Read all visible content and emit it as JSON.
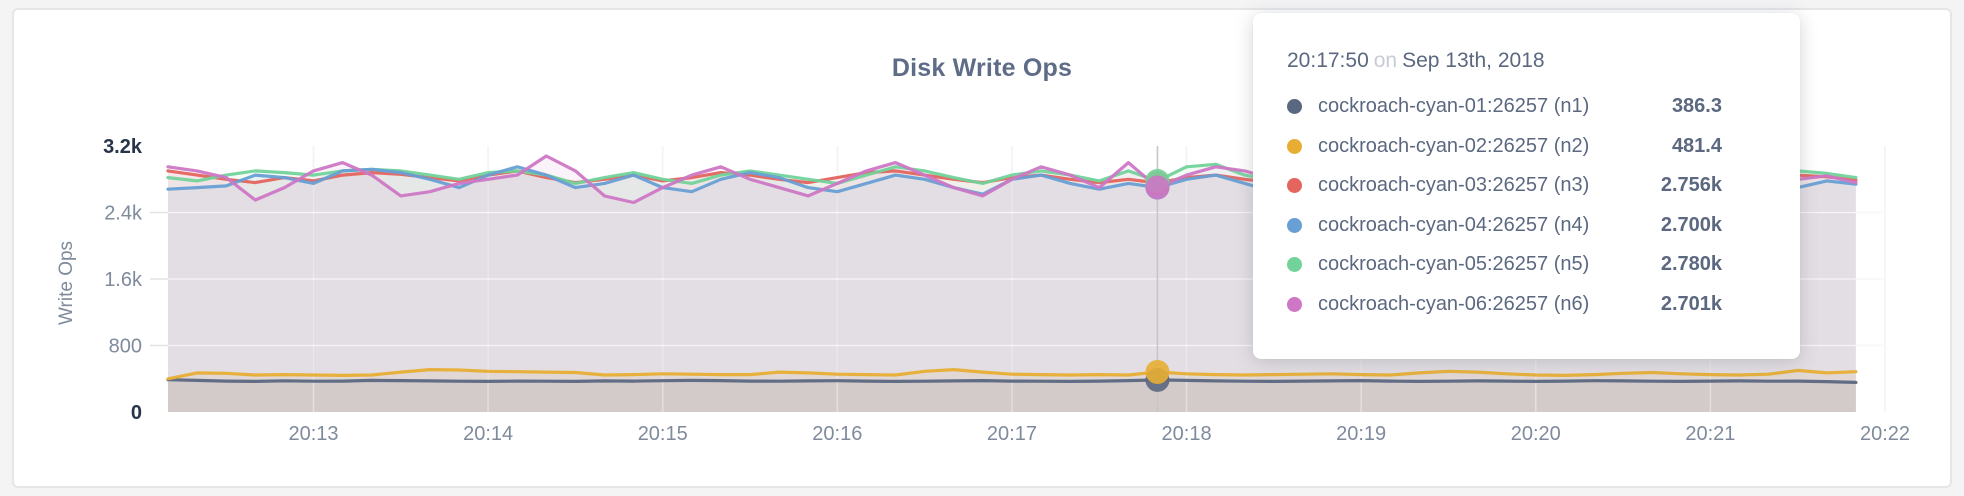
{
  "page": {
    "background": "#f4f4f5"
  },
  "card": {
    "background": "#ffffff",
    "border_color": "#e5e6e8"
  },
  "chart_data": {
    "type": "line",
    "title": "Disk Write Ops",
    "ylabel": "Write Ops",
    "xlabel": "",
    "ylim": [
      0,
      3200
    ],
    "grid": "on",
    "legend_position": "tooltip-only",
    "x_axis": {
      "start_time": "20:12:10",
      "end_time": "20:21:50",
      "step_sec": 10,
      "date": "Sep 13th, 2018"
    },
    "x_ticks": [
      {
        "label": "20:13",
        "sec": 50
      },
      {
        "label": "20:14",
        "sec": 110
      },
      {
        "label": "20:15",
        "sec": 170
      },
      {
        "label": "20:16",
        "sec": 230
      },
      {
        "label": "20:17",
        "sec": 290
      },
      {
        "label": "20:18",
        "sec": 350
      },
      {
        "label": "20:19",
        "sec": 410
      },
      {
        "label": "20:20",
        "sec": 470
      },
      {
        "label": "20:21",
        "sec": 530
      },
      {
        "label": "20:22",
        "sec": 590
      }
    ],
    "y_ticks": [
      {
        "label": "0",
        "value": 0,
        "emphasis": true
      },
      {
        "label": "800",
        "value": 800,
        "emphasis": false
      },
      {
        "label": "1.6k",
        "value": 1600,
        "emphasis": false
      },
      {
        "label": "2.4k",
        "value": 2400,
        "emphasis": false
      },
      {
        "label": "3.2k",
        "value": 3200,
        "emphasis": true
      }
    ],
    "x_offsets_sec": [
      0,
      10,
      20,
      30,
      40,
      50,
      60,
      70,
      80,
      90,
      100,
      110,
      120,
      130,
      140,
      150,
      160,
      170,
      180,
      190,
      200,
      210,
      220,
      230,
      240,
      250,
      260,
      270,
      280,
      290,
      300,
      310,
      320,
      330,
      340,
      350,
      360,
      370,
      380,
      390,
      400,
      410,
      420,
      430,
      440,
      450,
      460,
      470,
      480,
      490,
      500,
      510,
      520,
      530,
      540,
      550,
      560,
      570,
      580
    ],
    "series": [
      {
        "name": "cockroach-cyan-01:26257 (n1)",
        "color": "#5a6780",
        "fill_opacity": 0.13,
        "values": [
          388,
          380,
          372,
          368,
          375,
          370,
          372,
          380,
          378,
          374,
          370,
          368,
          372,
          370,
          368,
          374,
          372,
          376,
          380,
          378,
          372,
          370,
          374,
          376,
          372,
          368,
          370,
          374,
          378,
          372,
          370,
          368,
          372,
          378,
          386,
          380,
          374,
          370,
          368,
          372,
          374,
          378,
          372,
          368,
          370,
          374,
          372,
          368,
          372,
          376,
          374,
          370,
          368,
          372,
          374,
          370,
          372,
          366,
          356
        ]
      },
      {
        "name": "cockroach-cyan-02:26257 (n2)",
        "color": "#e7ae33",
        "fill_opacity": 0.1,
        "values": [
          400,
          470,
          465,
          445,
          450,
          445,
          440,
          445,
          480,
          510,
          505,
          490,
          485,
          480,
          475,
          445,
          450,
          460,
          455,
          450,
          450,
          480,
          470,
          455,
          450,
          445,
          490,
          510,
          480,
          455,
          450,
          445,
          450,
          445,
          481,
          460,
          450,
          445,
          450,
          455,
          460,
          450,
          445,
          470,
          490,
          480,
          460,
          445,
          440,
          450,
          465,
          475,
          460,
          450,
          445,
          455,
          500,
          470,
          485
        ]
      },
      {
        "name": "cockroach-cyan-03:26257 (n3)",
        "color": "#e4645e",
        "fill_opacity": 0.085,
        "values": [
          2900,
          2850,
          2800,
          2760,
          2820,
          2780,
          2850,
          2880,
          2860,
          2820,
          2780,
          2850,
          2900,
          2820,
          2760,
          2800,
          2850,
          2780,
          2820,
          2880,
          2850,
          2800,
          2760,
          2820,
          2880,
          2900,
          2850,
          2800,
          2760,
          2820,
          2850,
          2800,
          2760,
          2800,
          2756,
          2820,
          2850,
          2800,
          2760,
          2850,
          2900,
          2820,
          2780,
          2800,
          2850,
          2820,
          2780,
          2820,
          2860,
          2820,
          2780,
          2800,
          2850,
          2820,
          2780,
          2820,
          2850,
          2830,
          2790
        ]
      },
      {
        "name": "cockroach-cyan-04:26257 (n4)",
        "color": "#689fd4",
        "fill_opacity": 0.085,
        "values": [
          2680,
          2700,
          2720,
          2850,
          2820,
          2750,
          2900,
          2920,
          2880,
          2800,
          2700,
          2850,
          2950,
          2850,
          2700,
          2750,
          2850,
          2700,
          2650,
          2800,
          2880,
          2820,
          2700,
          2650,
          2750,
          2850,
          2800,
          2700,
          2620,
          2800,
          2850,
          2750,
          2680,
          2750,
          2700,
          2800,
          2850,
          2750,
          2650,
          2700,
          2800,
          2850,
          2700,
          2620,
          2700,
          2800,
          2750,
          2700,
          2750,
          2820,
          2750,
          2700,
          2650,
          2750,
          2800,
          2750,
          2700,
          2780,
          2740
        ]
      },
      {
        "name": "cockroach-cyan-05:26257 (n5)",
        "color": "#72d39a",
        "fill_opacity": 0.085,
        "values": [
          2820,
          2780,
          2850,
          2900,
          2880,
          2850,
          2900,
          2920,
          2900,
          2850,
          2800,
          2880,
          2900,
          2850,
          2750,
          2820,
          2880,
          2800,
          2750,
          2850,
          2900,
          2850,
          2800,
          2750,
          2850,
          2950,
          2900,
          2820,
          2750,
          2850,
          2900,
          2850,
          2780,
          2900,
          2780,
          2950,
          2980,
          2850,
          2780,
          2850,
          2800,
          2750,
          2820,
          2880,
          2850,
          2780,
          2820,
          2880,
          2900,
          2850,
          2780,
          2850,
          2880,
          2820,
          2780,
          2850,
          2900,
          2870,
          2820
        ]
      },
      {
        "name": "cockroach-cyan-06:26257 (n6)",
        "color": "#cd77c5",
        "fill_opacity": 0.085,
        "values": [
          2950,
          2900,
          2820,
          2550,
          2700,
          2900,
          3000,
          2850,
          2600,
          2650,
          2750,
          2800,
          2850,
          3080,
          2900,
          2600,
          2520,
          2700,
          2850,
          2950,
          2800,
          2700,
          2600,
          2750,
          2900,
          3000,
          2850,
          2700,
          2600,
          2800,
          2950,
          2850,
          2700,
          3000,
          2701,
          2850,
          2950,
          2900,
          2800,
          2850,
          2900,
          2850,
          2750,
          2800,
          2900,
          2950,
          2850,
          2750,
          2800,
          2850,
          2900,
          2800,
          2750,
          2850,
          2950,
          2900,
          2800,
          2840,
          2760
        ]
      }
    ]
  },
  "tooltip": {
    "time": "20:17:50",
    "conjunction": "on",
    "date": "Sep 13th, 2018",
    "hover_sec": 340,
    "hover_index": 34,
    "rows": [
      {
        "label": "cockroach-cyan-01:26257 (n1)",
        "value": "386.3",
        "color": "#5a6780"
      },
      {
        "label": "cockroach-cyan-02:26257 (n2)",
        "value": "481.4",
        "color": "#e7ae33"
      },
      {
        "label": "cockroach-cyan-03:26257 (n3)",
        "value": "2.756k",
        "color": "#e4645e"
      },
      {
        "label": "cockroach-cyan-04:26257 (n4)",
        "value": "2.700k",
        "color": "#689fd4"
      },
      {
        "label": "cockroach-cyan-05:26257 (n5)",
        "value": "2.780k",
        "color": "#72d39a"
      },
      {
        "label": "cockroach-cyan-06:26257 (n6)",
        "value": "2.701k",
        "color": "#cd77c5"
      }
    ]
  }
}
